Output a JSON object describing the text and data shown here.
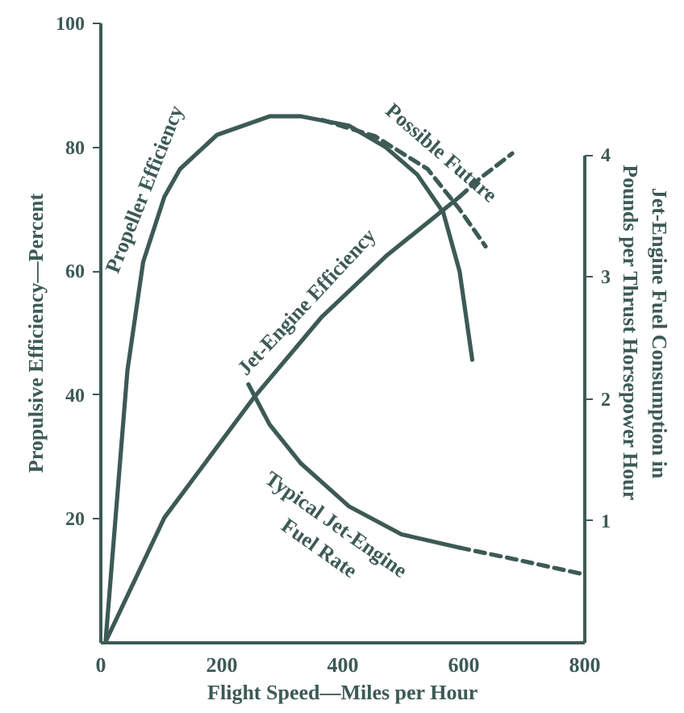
{
  "chart_data": {
    "type": "line",
    "xlabel": "Flight Speed—Miles per Hour",
    "ylabel": "Propulsive Efficiency—Percent",
    "y2label": "Jet-Engine Fuel Consumption in Pounds per Thrust Horsepower Hour",
    "xlim": [
      0,
      800
    ],
    "xticks": [
      0,
      200,
      400,
      600,
      800
    ],
    "ylim": [
      0,
      100
    ],
    "yticks": [
      20,
      40,
      60,
      80,
      100
    ],
    "y2lim": [
      0,
      5.08
    ],
    "y2ticks": [
      1,
      2,
      3,
      4
    ],
    "grid": false,
    "marker": "none",
    "series": [
      {
        "name": "Propeller Efficiency",
        "color": "#3d5a55",
        "line_style": "solid",
        "x": [
          8,
          44,
          70,
          105,
          131,
          192,
          279,
          331,
          410,
          471,
          523,
          566,
          593,
          614
        ],
        "values": [
          0.4,
          44,
          61.5,
          72,
          76.5,
          82,
          85,
          85,
          83.5,
          80,
          75.6,
          69.5,
          60,
          45.7
        ]
      },
      {
        "name": "Possible Future",
        "color": "#3d5a55",
        "line_style": "dashed",
        "x": [
          366,
          453,
          540,
          593,
          636
        ],
        "values": [
          84.4,
          81.8,
          76.5,
          70,
          64
        ]
      },
      {
        "name": "Jet-Engine Efficiency",
        "color": "#3d5a55",
        "line_style": "solid",
        "x": [
          9,
          105,
          253,
          366,
          471,
          593
        ],
        "values": [
          0.4,
          20.2,
          39.6,
          52.7,
          62.4,
          72
        ]
      },
      {
        "color": "#3d5a55",
        "line_style": "dashed",
        "x": [
          593,
          627,
          680
        ],
        "values": [
          72,
          75,
          79
        ]
      },
      {
        "name": "Typical Jet-Engine Fuel Rate",
        "color": "#3d5a55",
        "line_style": "solid",
        "axis": "y2",
        "x": [
          244,
          279,
          331,
          410,
          497,
          593
        ],
        "values": [
          2.12,
          1.79,
          1.47,
          1.12,
          0.89,
          0.78
        ]
      },
      {
        "color": "#3d5a55",
        "line_style": "dashed",
        "axis": "y2",
        "x": [
          593,
          680,
          800
        ],
        "values": [
          0.78,
          0.69,
          0.56
        ]
      }
    ]
  }
}
